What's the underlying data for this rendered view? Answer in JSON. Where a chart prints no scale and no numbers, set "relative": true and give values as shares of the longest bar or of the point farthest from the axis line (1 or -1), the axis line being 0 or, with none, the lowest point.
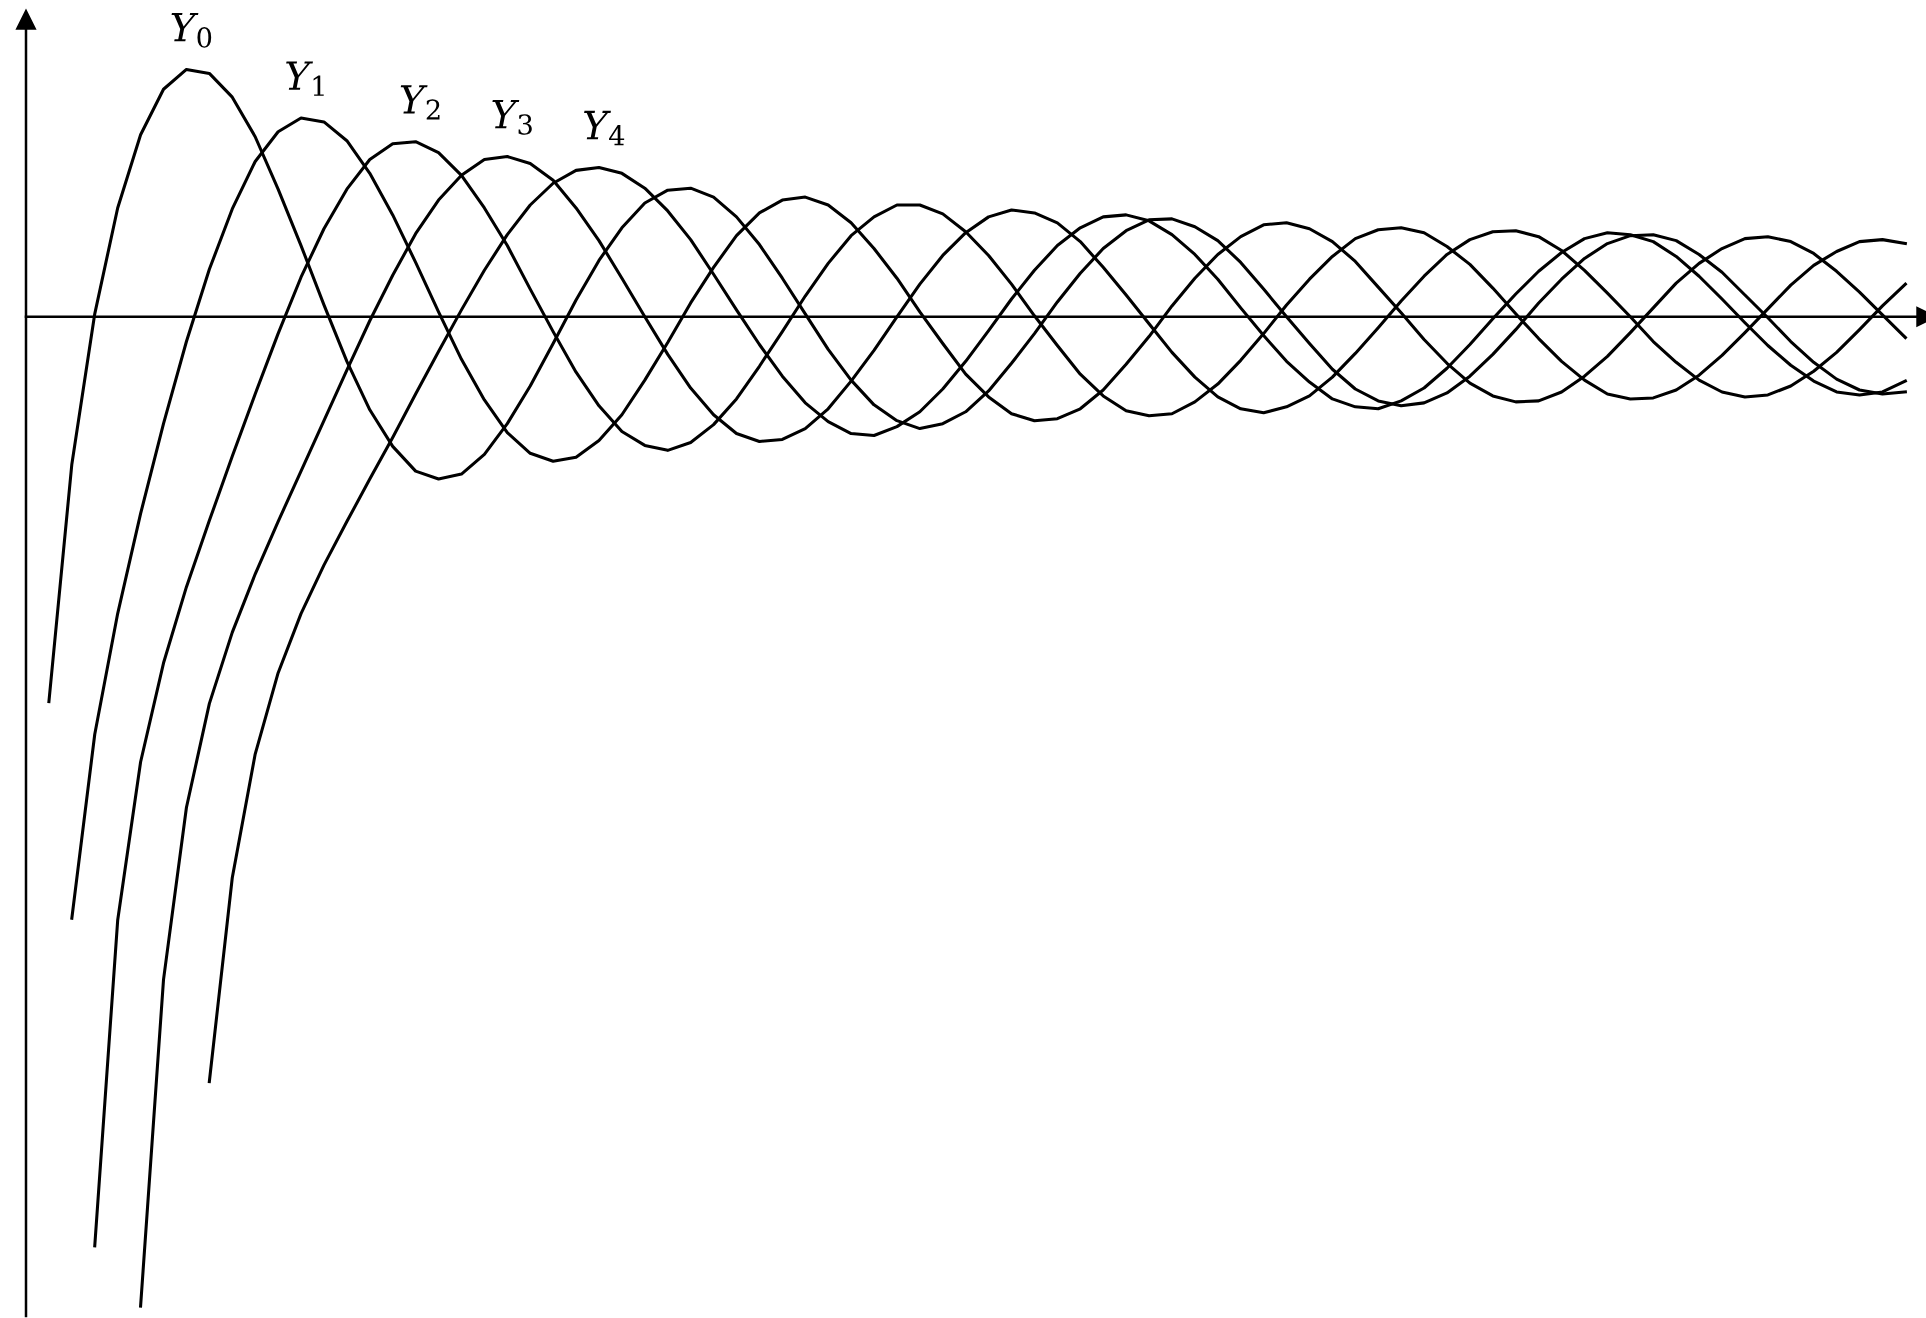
{
  "chart_data": {
    "type": "line",
    "relative": true,
    "marker": "none",
    "line_style": "solid",
    "categories": [
      null,
      null,
      null,
      null,
      null,
      null,
      null,
      null,
      null,
      null,
      null,
      null,
      null,
      null,
      null,
      null,
      null,
      null,
      null,
      null,
      null,
      null,
      null,
      null,
      null,
      null,
      null,
      null,
      null,
      null,
      null,
      null,
      null,
      null,
      null,
      null,
      null,
      null,
      null,
      null,
      null,
      null,
      null,
      null,
      null,
      null,
      null,
      null,
      null,
      null,
      null,
      null,
      null,
      null,
      null,
      null,
      null,
      null,
      null,
      null,
      null,
      null,
      null,
      null,
      null,
      null,
      null,
      null,
      null,
      null,
      null,
      null,
      null,
      null,
      null,
      null,
      null,
      null,
      null,
      null,
      null,
      null
    ],
    "series": [
      {
        "name": "Y$_{0}$",
        "color": "#000000",
        "values": [
          -0.389,
          -0.149,
          0.003,
          0.11,
          0.184,
          0.23,
          0.25,
          0.246,
          0.222,
          0.182,
          0.129,
          0.072,
          0.012,
          -0.045,
          -0.094,
          -0.131,
          -0.156,
          -0.164,
          -0.159,
          -0.139,
          -0.108,
          -0.07,
          -0.027,
          0.017,
          0.057,
          0.09,
          0.115,
          0.128,
          0.13,
          0.121,
          0.101,
          0.073,
          0.039,
          0.003,
          -0.033,
          -0.064,
          -0.089,
          -0.105,
          -0.113,
          -0.108,
          -0.096,
          -0.075,
          -0.047,
          -0.017,
          0.015,
          0.044,
          0.069,
          0.087,
          0.098,
          0.099,
          0.091,
          0.077,
          0.055,
          0.028,
          0,
          -0.027,
          -0.053,
          -0.073,
          -0.085,
          -0.09,
          -0.087,
          -0.077,
          -0.06,
          -0.038,
          -0.013,
          0.014,
          0.038,
          0.059,
          0.074,
          0.082,
          0.083,
          0.077,
          0.063,
          0.045,
          0.022,
          -0.001,
          -0.025,
          -0.046,
          -0.063,
          -0.074,
          -0.078,
          -0.076
        ]
      },
      {
        "name": "Y$_{1}$",
        "color": "#000000",
        "values": [
          null,
          -0.608,
          -0.422,
          -0.3,
          -0.199,
          -0.108,
          -0.025,
          0.048,
          0.109,
          0.157,
          0.187,
          0.201,
          0.197,
          0.178,
          0.145,
          0.103,
          0.055,
          0.005,
          -0.043,
          -0.084,
          -0.117,
          -0.138,
          -0.146,
          -0.142,
          -0.125,
          -0.099,
          -0.064,
          -0.026,
          0.014,
          0.05,
          0.082,
          0.105,
          0.118,
          0.121,
          0.113,
          0.095,
          0.069,
          0.039,
          0.005,
          -0.027,
          -0.058,
          -0.081,
          -0.098,
          -0.105,
          -0.103,
          -0.093,
          -0.074,
          -0.048,
          -0.02,
          0.011,
          0.039,
          0.063,
          0.081,
          0.093,
          0.095,
          0.089,
          0.076,
          0.056,
          0.03,
          0.004,
          -0.023,
          -0.047,
          -0.067,
          -0.08,
          -0.086,
          -0.085,
          -0.076,
          -0.06,
          -0.04,
          -0.016,
          0.009,
          0.034,
          0.054,
          0.069,
          0.079,
          0.081,
          0.076,
          0.064,
          0.046,
          0.025,
          0.002,
          -0.021
        ]
      },
      {
        "name": "Y$_{2}$",
        "color": "#000000",
        "values": [
          null,
          null,
          -0.939,
          -0.61,
          -0.45,
          -0.35,
          -0.273,
          -0.206,
          -0.141,
          -0.078,
          -0.017,
          0.04,
          0.089,
          0.129,
          0.159,
          0.175,
          0.177,
          0.166,
          0.143,
          0.11,
          0.072,
          0.028,
          -0.015,
          -0.056,
          -0.09,
          -0.116,
          -0.13,
          -0.135,
          -0.127,
          -0.109,
          -0.083,
          -0.05,
          -0.015,
          0.021,
          0.054,
          0.082,
          0.101,
          0.113,
          0.113,
          0.104,
          0.086,
          0.062,
          0.033,
          0.001,
          -0.029,
          -0.058,
          -0.08,
          -0.095,
          -0.1,
          -0.098,
          -0.086,
          -0.068,
          -0.044,
          -0.017,
          0.012,
          0.038,
          0.061,
          0.079,
          0.088,
          0.09,
          0.085,
          0.071,
          0.053,
          0.029,
          0.003,
          -0.022,
          -0.045,
          -0.064,
          -0.078,
          -0.083,
          -0.082,
          -0.074,
          -0.059,
          -0.039,
          -0.016,
          0.008,
          0.032,
          0.052,
          0.066,
          0.076,
          0.078,
          0.074
        ]
      },
      {
        "name": "Y$_{3}$",
        "color": "#000000",
        "values": [
          null,
          null,
          null,
          null,
          -1,
          -0.67,
          -0.496,
          -0.391,
          -0.319,
          -0.26,
          -0.207,
          -0.156,
          -0.105,
          -0.054,
          -0.004,
          0.042,
          0.084,
          0.118,
          0.143,
          0.159,
          0.162,
          0.155,
          0.138,
          0.11,
          0.077,
          0.039,
          0,
          -0.038,
          -0.072,
          -0.099,
          -0.118,
          -0.126,
          -0.124,
          -0.113,
          -0.093,
          -0.065,
          -0.034,
          0,
          0.033,
          0.062,
          0.085,
          0.101,
          0.108,
          0.105,
          0.095,
          0.076,
          0.05,
          0.022,
          -0.007,
          -0.036,
          -0.061,
          -0.081,
          -0.093,
          -0.097,
          -0.091,
          -0.08,
          -0.061,
          -0.037,
          -0.011,
          0.016,
          0.041,
          0.063,
          0.078,
          0.086,
          0.087,
          0.081,
          0.067,
          0.047,
          0.024,
          0,
          -0.025,
          -0.046,
          -0.064,
          -0.076,
          -0.081,
          -0.079,
          -0.07,
          -0.055,
          -0.036,
          -0.013,
          0.011,
          0.033
        ]
      },
      {
        "name": "Y$_{4}$",
        "color": "#000000",
        "values": [
          null,
          null,
          null,
          null,
          null,
          null,
          null,
          -0.773,
          -0.567,
          -0.442,
          -0.36,
          -0.3,
          -0.251,
          -0.207,
          -0.164,
          -0.122,
          -0.078,
          -0.035,
          0.007,
          0.047,
          0.083,
          0.113,
          0.135,
          0.148,
          0.151,
          0.145,
          0.13,
          0.107,
          0.078,
          0.043,
          0.007,
          -0.028,
          -0.06,
          -0.087,
          -0.106,
          -0.118,
          -0.12,
          -0.111,
          -0.096,
          -0.073,
          -0.045,
          -0.014,
          0.018,
          0.047,
          0.072,
          0.09,
          0.101,
          0.103,
          0.097,
          0.083,
          0.063,
          0.038,
          0.009,
          -0.019,
          -0.045,
          -0.066,
          -0.083,
          -0.091,
          -0.093,
          -0.085,
          -0.072,
          -0.052,
          -0.028,
          -0.002,
          0.023,
          0.046,
          0.065,
          0.079,
          0.085,
          0.083,
          0.076,
          0.061,
          0.041,
          0.018,
          -0.006,
          -0.029,
          -0.049,
          -0.065,
          -0.076,
          -0.079,
          -0.076,
          -0.065
        ]
      }
    ]
  }
}
